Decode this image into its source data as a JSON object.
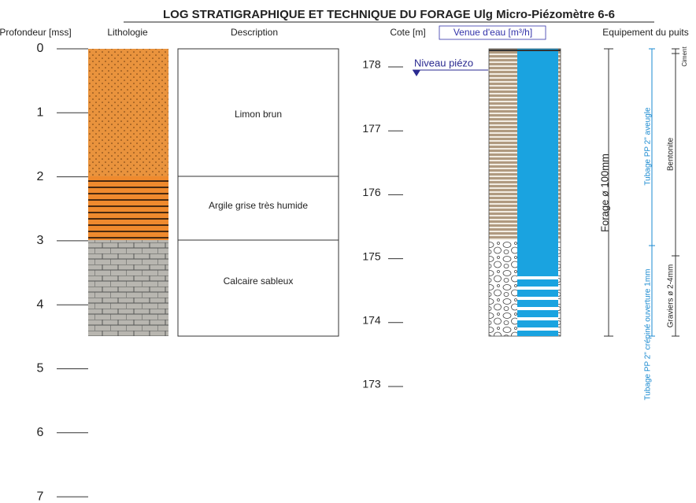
{
  "header": {
    "title": "LOG STRATIGRAPHIQUE ET TECHNIQUE DU FORAGE Ulg Micro-Piézomètre 6-6",
    "columns": [
      "Profondeur [mss]",
      "Lithologie",
      "Description",
      "Cote [m]",
      "Venue d'eau [m³/h]",
      "Equipement du puits"
    ]
  },
  "depth_ticks": [
    "0",
    "1",
    "2",
    "3",
    "4",
    "5",
    "6",
    "7"
  ],
  "cote_ticks": [
    "178",
    "177",
    "176",
    "175",
    "174",
    "173"
  ],
  "layers": [
    {
      "description": "Limon brun"
    },
    {
      "description": "Argile grise très humide"
    },
    {
      "description": "Calcaire sableux"
    }
  ],
  "water_level": {
    "label": "Niveau piézo"
  },
  "equipment": {
    "borehole": "Forage  ø  100mm",
    "casing_blind": "Tubage PP 2\" aveugle",
    "casing_screen": "Tubage PP 2\" crépiné ouverture 1mm",
    "cement": "Ciment",
    "bentonite": "Bentonite",
    "gravel": "Graviers ø 2-4mm"
  }
}
